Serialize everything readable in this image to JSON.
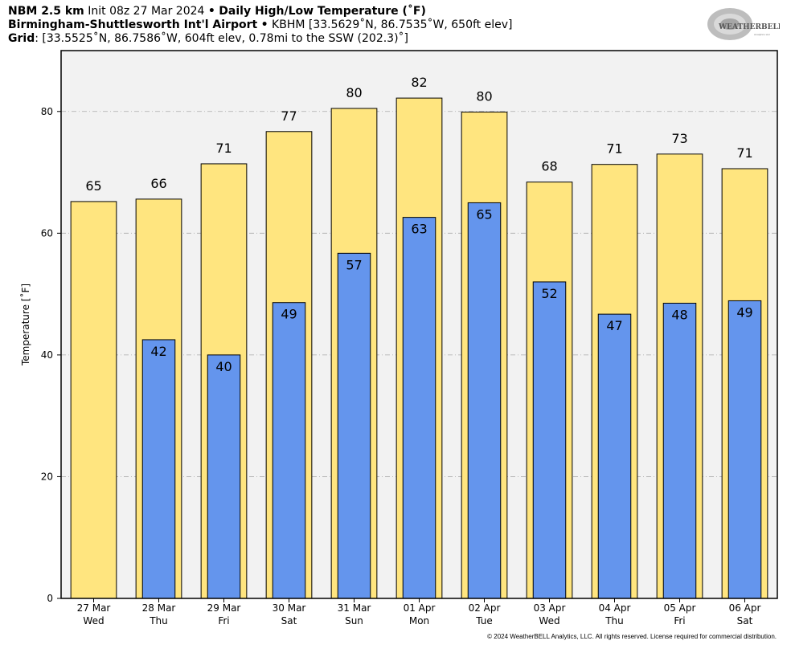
{
  "header": {
    "model": "NBM 2.5 km",
    "init": "Init 08z 27 Mar 2024",
    "product": "Daily High/Low Temperature (˚F)",
    "station_name": "Birmingham-Shuttlesworth Int'l Airport",
    "station_info": "KBHM [33.5629˚N, 86.7535˚W, 650ft elev]",
    "grid_label": "Grid",
    "grid_info": ": [33.5525˚N, 86.7586˚W, 604ft elev, 0.78mi to the SSW (202.3)˚]",
    "bullet": "•"
  },
  "logo": {
    "line1": "WEATHERBELL",
    "line2": "Analytics LLC"
  },
  "copyright": "© 2024 WeatherBELL Analytics, LLC. All rights reserved. License required for commercial distribution.",
  "colors": {
    "high": "#FFE57F",
    "low": "#6495ED",
    "plot_bg": "#F2F2F2",
    "grid": "#AAAAAA"
  },
  "chart_data": {
    "type": "bar",
    "ylabel": "Temperature [˚F]",
    "ylim": [
      0,
      90
    ],
    "yticks": [
      0,
      20,
      40,
      60,
      80
    ],
    "grid": true,
    "categories": [
      {
        "date": "27 Mar",
        "day": "Wed"
      },
      {
        "date": "28 Mar",
        "day": "Thu"
      },
      {
        "date": "29 Mar",
        "day": "Fri"
      },
      {
        "date": "30 Mar",
        "day": "Sat"
      },
      {
        "date": "31 Mar",
        "day": "Sun"
      },
      {
        "date": "01 Apr",
        "day": "Mon"
      },
      {
        "date": "02 Apr",
        "day": "Tue"
      },
      {
        "date": "03 Apr",
        "day": "Wed"
      },
      {
        "date": "04 Apr",
        "day": "Thu"
      },
      {
        "date": "05 Apr",
        "day": "Fri"
      },
      {
        "date": "06 Apr",
        "day": "Sat"
      }
    ],
    "series": [
      {
        "key": "high",
        "values": [
          65.2,
          65.6,
          71.4,
          76.7,
          80.5,
          82.2,
          79.9,
          68.4,
          71.3,
          73.0,
          70.6
        ],
        "labels": [
          "65",
          "66",
          "71",
          "77",
          "80",
          "82",
          "80",
          "68",
          "71",
          "73",
          "71"
        ]
      },
      {
        "key": "low",
        "values": [
          null,
          42.5,
          40.0,
          48.6,
          56.7,
          62.6,
          65.0,
          52.0,
          46.7,
          48.5,
          48.9
        ],
        "labels": [
          "",
          "42",
          "40",
          "49",
          "57",
          "63",
          "65",
          "52",
          "47",
          "48",
          "49"
        ]
      }
    ]
  }
}
